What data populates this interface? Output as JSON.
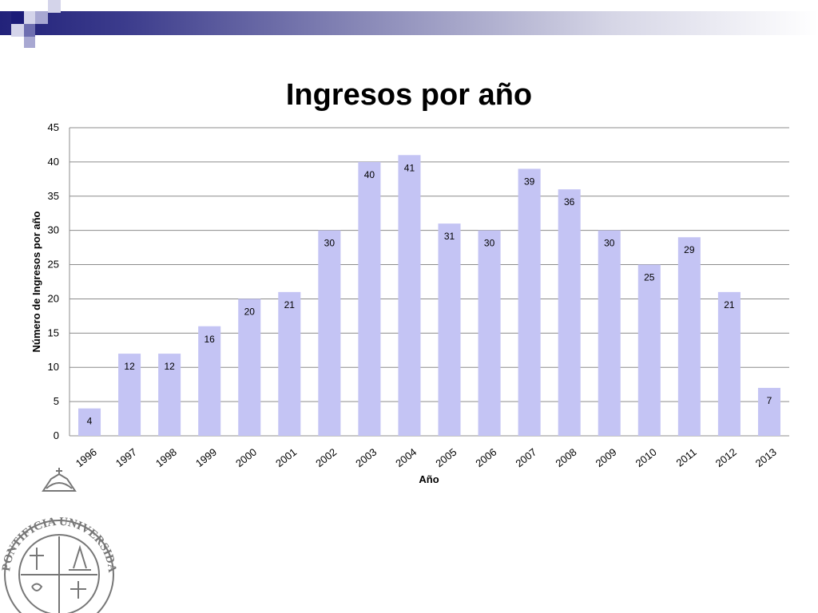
{
  "colors": {
    "bar": "#c4c4f4",
    "grid": "#8c8c8c",
    "accent": "#1c1c78"
  },
  "seal": {
    "text": "PONTIFICIA UNIVERSIDAD CATOLICA"
  },
  "chart_data": {
    "type": "bar",
    "title": "Ingresos por año",
    "xlabel": "Año",
    "ylabel": "Número de Ingresos por año",
    "categories": [
      "1996",
      "1997",
      "1998",
      "1999",
      "2000",
      "2001",
      "2002",
      "2003",
      "2004",
      "2005",
      "2006",
      "2007",
      "2008",
      "2009",
      "2010",
      "2011",
      "2012",
      "2013"
    ],
    "values": [
      4,
      12,
      12,
      16,
      20,
      21,
      30,
      40,
      41,
      31,
      30,
      39,
      36,
      30,
      25,
      29,
      21,
      7
    ],
    "ylim": [
      0,
      45
    ],
    "yticks": [
      0,
      5,
      10,
      15,
      20,
      25,
      30,
      35,
      40,
      45
    ],
    "grid": true,
    "data_labels": true
  }
}
